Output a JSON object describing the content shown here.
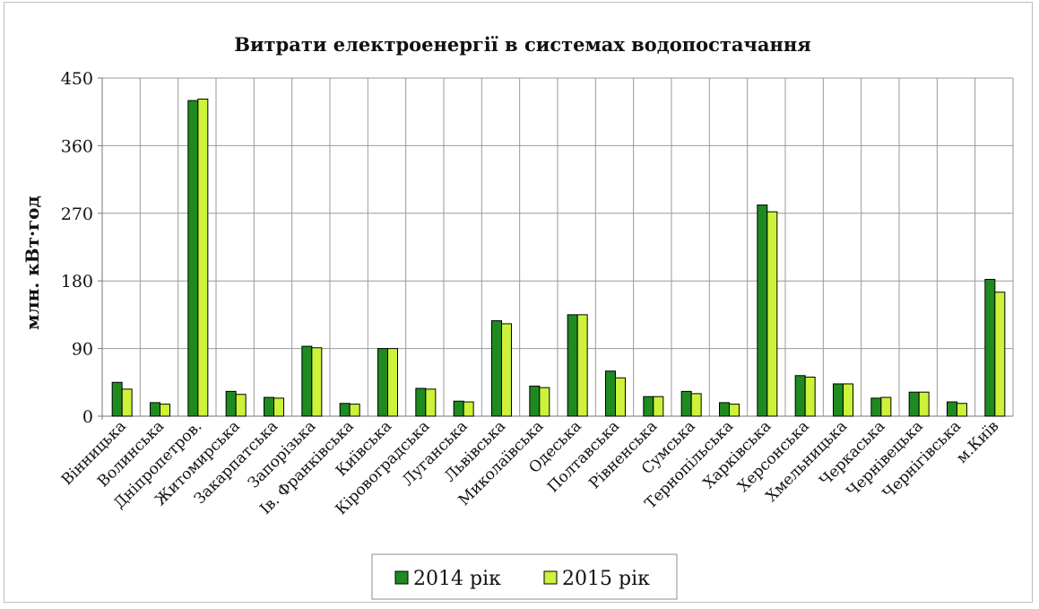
{
  "chart_data": {
    "type": "bar",
    "title": "Витрати електроенергії в системах водопостачання",
    "ylabel": "млн. кВт·год",
    "xlabel": "",
    "ylim": [
      0,
      450
    ],
    "yticks": [
      0,
      90,
      180,
      270,
      360,
      450
    ],
    "grid": true,
    "legend_position": "bottom",
    "categories": [
      "Вінницька",
      "Волинська",
      "Дніпропетров.",
      "Житомирська",
      "Закарпатська",
      "Запорізька",
      "Ів. Франківська",
      "Київська",
      "Кіровоградська",
      "Луганська",
      "Львівська",
      "Миколаївська",
      "Одеська",
      "Полтавська",
      "Рівненська",
      "Сумська",
      "Тернопільська",
      "Харківська",
      "Херсонська",
      "Хмельницька",
      "Черкаська",
      "Чернівецька",
      "Чернігівська",
      "м.Київ"
    ],
    "series": [
      {
        "name": "2014 рік",
        "color": "#1f8a1f",
        "values": [
          45,
          18,
          420,
          33,
          25,
          93,
          17,
          90,
          37,
          20,
          127,
          40,
          135,
          60,
          26,
          33,
          18,
          281,
          54,
          43,
          24,
          32,
          19,
          182
        ]
      },
      {
        "name": "2015 рік",
        "color": "#ccf23a",
        "values": [
          36,
          16,
          422,
          29,
          24,
          91,
          16,
          90,
          36,
          19,
          123,
          38,
          135,
          51,
          26,
          30,
          16,
          272,
          52,
          43,
          25,
          32,
          17,
          165
        ]
      }
    ]
  }
}
